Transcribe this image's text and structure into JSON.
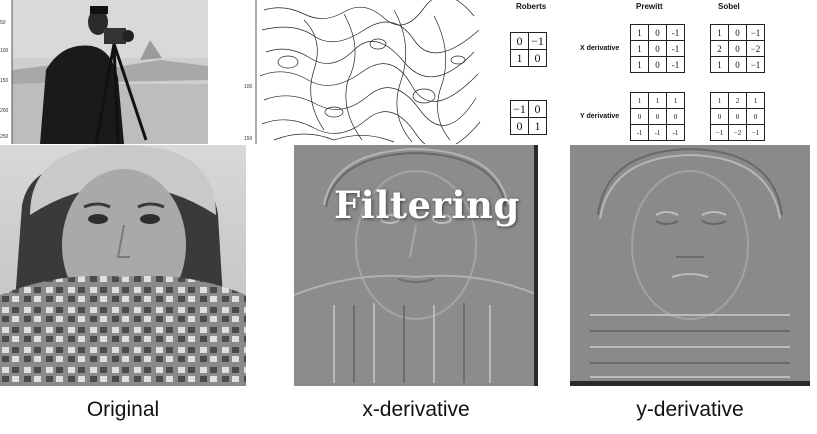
{
  "kernels": {
    "roberts": {
      "title": "Roberts",
      "x": [
        [
          "0",
          "−1"
        ],
        [
          "1",
          "0"
        ]
      ],
      "y": [
        [
          "−1",
          "0"
        ],
        [
          "0",
          "1"
        ]
      ]
    },
    "prewitt": {
      "title": "Prewitt",
      "x": [
        [
          "1",
          "0",
          "-1"
        ],
        [
          "1",
          "0",
          "-1"
        ],
        [
          "1",
          "0",
          "-1"
        ]
      ],
      "y": [
        [
          "1",
          "1",
          "1"
        ],
        [
          "0",
          "0",
          "0"
        ],
        [
          "-1",
          "-1",
          "-1"
        ]
      ]
    },
    "sobel": {
      "title": "Sobel",
      "x": [
        [
          "1",
          "0",
          "−1"
        ],
        [
          "2",
          "0",
          "−2"
        ],
        [
          "1",
          "0",
          "−1"
        ]
      ],
      "y": [
        [
          "1",
          "2",
          "1"
        ],
        [
          "0",
          "0",
          "0"
        ],
        [
          "−1",
          "−2",
          "−1"
        ]
      ]
    },
    "x_label": "X derivative",
    "y_label": "Y derivative"
  },
  "top_plots": {
    "cameraman_ticks": [
      "50",
      "100",
      "150",
      "200",
      "250"
    ],
    "contour_ticks": [
      "100",
      "150"
    ]
  },
  "overlay_title": "Filtering",
  "captions": {
    "original": "Original",
    "x_derivative": "x-derivative",
    "y_derivative": "y-derivative"
  },
  "colors": {
    "overlay_text": "#ffffff",
    "emboss_gray": "#8c8c8c"
  }
}
